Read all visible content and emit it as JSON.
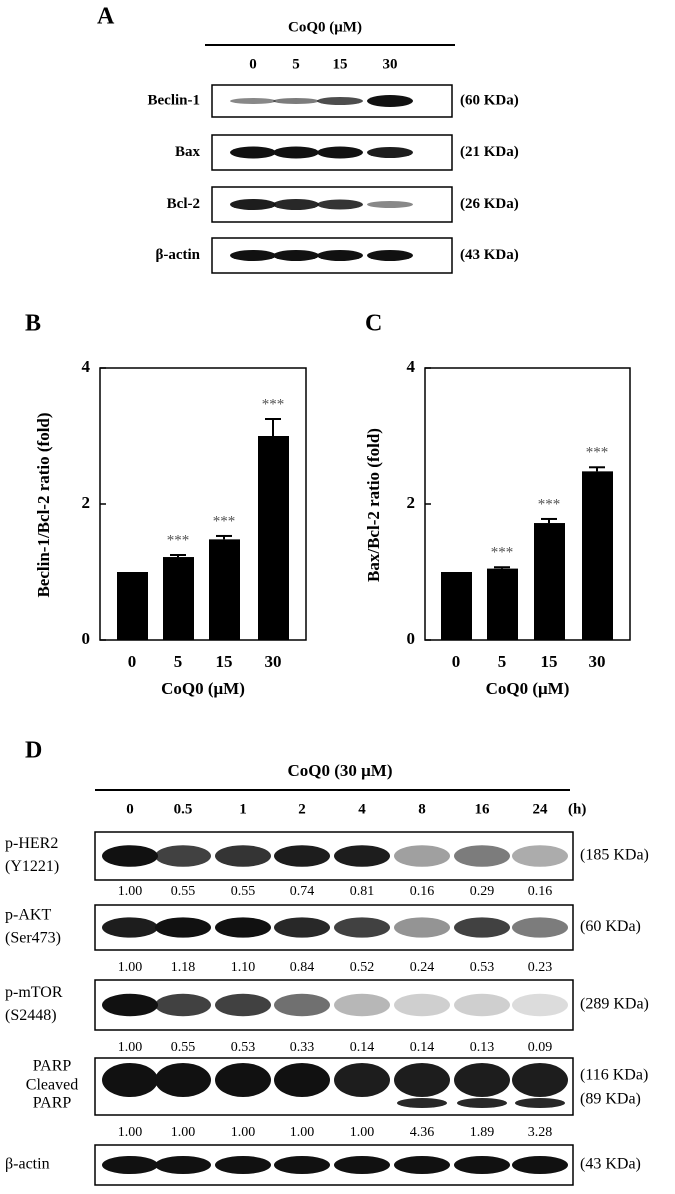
{
  "panel_a": {
    "label": "A",
    "header": "CoQ0 (μM)",
    "lanes": [
      "0",
      "5",
      "15",
      "30"
    ],
    "rows": [
      {
        "name": "Beclin-1",
        "size": "(60 KDa)"
      },
      {
        "name": "Bax",
        "size": "(21 KDa)"
      },
      {
        "name": "Bcl-2",
        "size": "(26 KDa)"
      },
      {
        "name": "β-actin",
        "size": "(43 KDa)"
      }
    ]
  },
  "chart_data": [
    {
      "type": "bar",
      "panel": "B",
      "ylabel": "Beclin-1/Bcl-2 ratio (fold)",
      "xlabel": "CoQ0 (μM)",
      "categories": [
        "0",
        "5",
        "15",
        "30"
      ],
      "values": [
        1,
        1.22,
        1.48,
        3.0
      ],
      "errors": [
        0,
        0.03,
        0.05,
        0.25
      ],
      "annotations": [
        null,
        "***",
        "***",
        "***"
      ],
      "ylim": [
        0,
        4
      ],
      "yticks": [
        0,
        2,
        4
      ],
      "color": "#000000"
    },
    {
      "type": "bar",
      "panel": "C",
      "ylabel": "Bax/Bcl-2 ratio (fold)",
      "xlabel": "CoQ0 (μM)",
      "categories": [
        "0",
        "5",
        "15",
        "30"
      ],
      "values": [
        1,
        1.05,
        1.72,
        2.48
      ],
      "errors": [
        0,
        0.02,
        0.06,
        0.06
      ],
      "annotations": [
        null,
        "***",
        "***",
        "***"
      ],
      "ylim": [
        0,
        4
      ],
      "yticks": [
        0,
        2,
        4
      ],
      "color": "#000000"
    }
  ],
  "panel_d": {
    "label": "D",
    "header": "CoQ0 (30 μM)",
    "lanes": [
      "0",
      "0.5",
      "1",
      "2",
      "4",
      "8",
      "16",
      "24"
    ],
    "unit": "(h)",
    "rows": [
      {
        "names": [
          "p-HER2",
          "(Y1221)"
        ],
        "sizes": [
          "(185 KDa)"
        ],
        "quant": [
          "1.00",
          "0.55",
          "0.55",
          "0.74",
          "0.81",
          "0.16",
          "0.29",
          "0.16"
        ]
      },
      {
        "names": [
          "p-AKT",
          "(Ser473)"
        ],
        "sizes": [
          "(60 KDa)"
        ],
        "quant": [
          "1.00",
          "1.18",
          "1.10",
          "0.84",
          "0.52",
          "0.24",
          "0.53",
          "0.23"
        ]
      },
      {
        "names": [
          "p-mTOR",
          "(S2448)"
        ],
        "sizes": [
          "(289 KDa)"
        ],
        "quant": [
          "1.00",
          "0.55",
          "0.53",
          "0.33",
          "0.14",
          "0.14",
          "0.13",
          "0.09"
        ]
      },
      {
        "names": [
          "PARP",
          "Cleaved",
          "PARP"
        ],
        "sizes": [
          "(116 KDa)",
          "(89 KDa)"
        ],
        "quant": [
          "1.00",
          "1.00",
          "1.00",
          "1.00",
          "1.00",
          "4.36",
          "1.89",
          "3.28"
        ]
      },
      {
        "names": [
          "β-actin"
        ],
        "sizes": [
          "(43 KDa)"
        ]
      }
    ]
  }
}
